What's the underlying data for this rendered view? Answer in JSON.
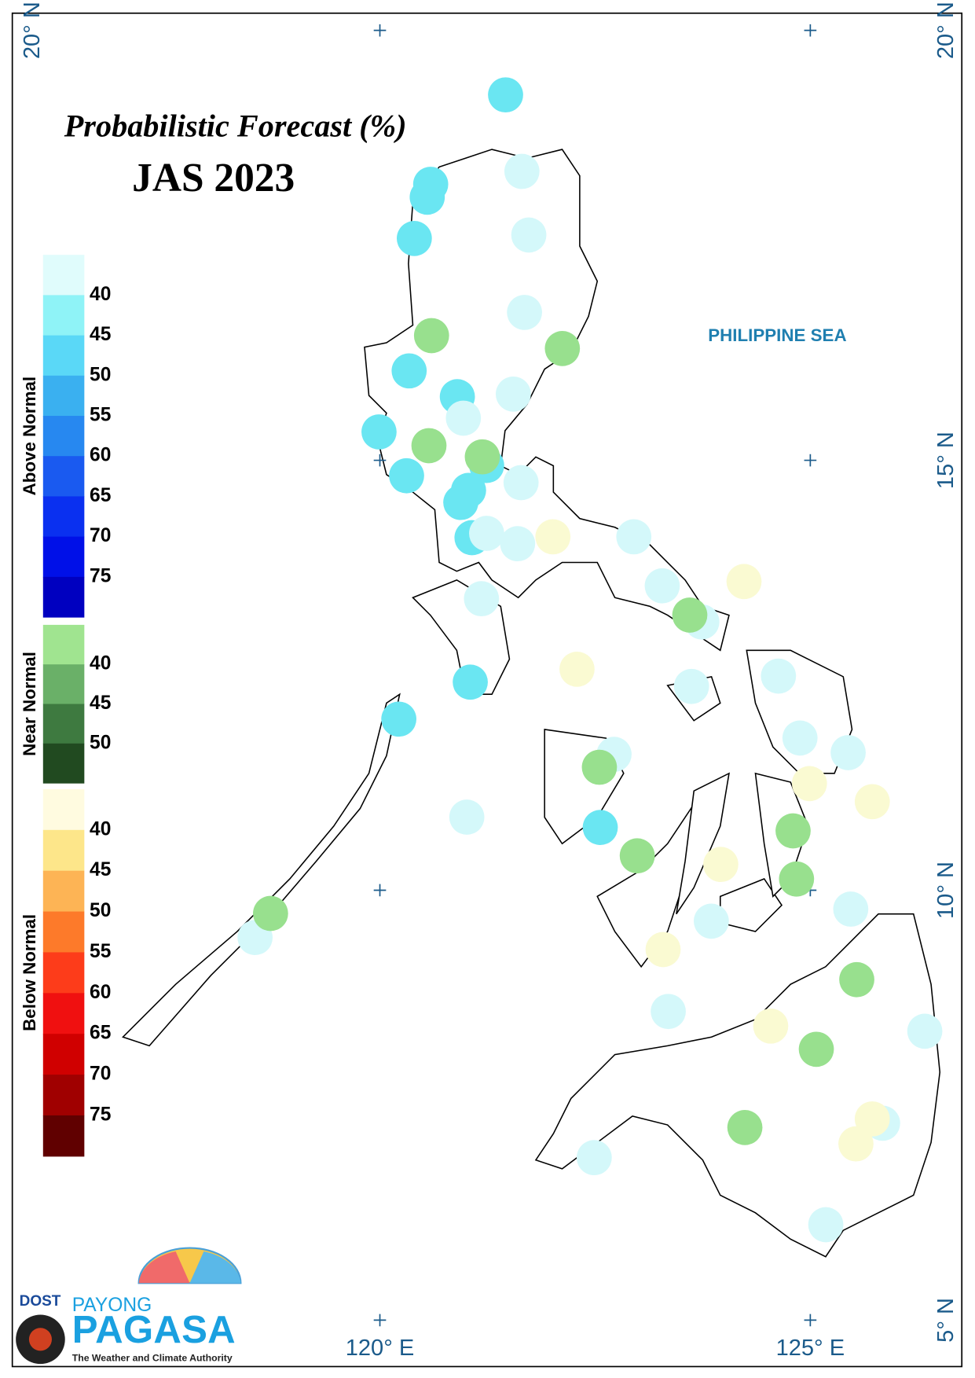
{
  "map": {
    "title": "Probabilistic Forecast (%)",
    "subtitle": "JAS 2023",
    "sea_label": "PHILIPPINE SEA",
    "lon_extent": [
      115.73,
      126.76
    ],
    "lat_extent": [
      4.46,
      20.2
    ],
    "lon_ticks": [
      {
        "value": 120,
        "label": "120° E"
      },
      {
        "value": 125,
        "label": "125° E"
      }
    ],
    "lat_ticks": [
      {
        "value": 20,
        "label": "20° N"
      },
      {
        "value": 15,
        "label": "15° N"
      },
      {
        "value": 10,
        "label": "10° N"
      },
      {
        "value": 5,
        "label": "5° N"
      }
    ],
    "legend": [
      {
        "name": "Above Normal",
        "colors": [
          "#e0fcfc",
          "#8ff3f7",
          "#5ad8f7",
          "#3ab0f0",
          "#2788f0",
          "#1a5af0",
          "#0a30f0",
          "#0010e8",
          "#0000c0"
        ],
        "labels": [
          40,
          45,
          50,
          55,
          60,
          65,
          70,
          75
        ]
      },
      {
        "name": "Near Normal",
        "colors": [
          "#a0e490",
          "#6ab068",
          "#3e7a40",
          "#214a20"
        ],
        "labels": [
          40,
          45,
          50
        ]
      },
      {
        "name": "Below Normal",
        "colors": [
          "#fffbe0",
          "#fde68a",
          "#fdb455",
          "#fd7a2a",
          "#fd3c1a",
          "#f01010",
          "#d00000",
          "#a00000",
          "#600000"
        ],
        "labels": [
          40,
          45,
          50,
          55,
          60,
          65,
          70,
          75
        ]
      }
    ],
    "stations": [
      {
        "lon": 121.46,
        "lat": 19.25,
        "color": "#6ae6f2"
      },
      {
        "lon": 121.65,
        "lat": 18.36,
        "color": "#d4f8fa"
      },
      {
        "lon": 120.59,
        "lat": 18.21,
        "color": "#6ae6f2"
      },
      {
        "lon": 120.55,
        "lat": 18.06,
        "color": "#6ae6f2"
      },
      {
        "lon": 120.4,
        "lat": 17.58,
        "color": "#6ae6f2"
      },
      {
        "lon": 121.73,
        "lat": 17.62,
        "color": "#d4f8fa"
      },
      {
        "lon": 121.68,
        "lat": 16.72,
        "color": "#d4f8fa"
      },
      {
        "lon": 120.6,
        "lat": 16.45,
        "color": "#98e08e"
      },
      {
        "lon": 122.12,
        "lat": 16.3,
        "color": "#98e08e"
      },
      {
        "lon": 120.34,
        "lat": 16.04,
        "color": "#6ae6f2"
      },
      {
        "lon": 120.9,
        "lat": 15.74,
        "color": "#6ae6f2"
      },
      {
        "lon": 121.55,
        "lat": 15.77,
        "color": "#d4f8fa"
      },
      {
        "lon": 120.97,
        "lat": 15.49,
        "color": "#d4f8fa"
      },
      {
        "lon": 119.99,
        "lat": 15.33,
        "color": "#6ae6f2"
      },
      {
        "lon": 120.57,
        "lat": 15.17,
        "color": "#98e08e"
      },
      {
        "lon": 121.24,
        "lat": 14.94,
        "color": "#6ae6f2"
      },
      {
        "lon": 121.19,
        "lat": 15.04,
        "color": "#98e08e"
      },
      {
        "lon": 120.31,
        "lat": 14.82,
        "color": "#6ae6f2"
      },
      {
        "lon": 121.64,
        "lat": 14.74,
        "color": "#d4f8fa"
      },
      {
        "lon": 121.03,
        "lat": 14.65,
        "color": "#6ae6f2"
      },
      {
        "lon": 120.94,
        "lat": 14.51,
        "color": "#6ae6f2"
      },
      {
        "lon": 121.07,
        "lat": 14.1,
        "color": "#6ae6f2"
      },
      {
        "lon": 121.24,
        "lat": 14.15,
        "color": "#d4f8fa"
      },
      {
        "lon": 121.6,
        "lat": 14.03,
        "color": "#d4f8fa"
      },
      {
        "lon": 122.01,
        "lat": 14.11,
        "color": "#fafad2"
      },
      {
        "lon": 122.95,
        "lat": 14.11,
        "color": "#d4f8fa"
      },
      {
        "lon": 123.28,
        "lat": 13.54,
        "color": "#d4f8fa"
      },
      {
        "lon": 124.23,
        "lat": 13.59,
        "color": "#fafad2"
      },
      {
        "lon": 121.18,
        "lat": 13.39,
        "color": "#d4f8fa"
      },
      {
        "lon": 123.74,
        "lat": 13.12,
        "color": "#d4f8fa"
      },
      {
        "lon": 123.6,
        "lat": 13.2,
        "color": "#98e08e"
      },
      {
        "lon": 122.29,
        "lat": 12.57,
        "color": "#fafad2"
      },
      {
        "lon": 121.05,
        "lat": 12.42,
        "color": "#6ae6f2"
      },
      {
        "lon": 123.62,
        "lat": 12.37,
        "color": "#d4f8fa"
      },
      {
        "lon": 124.63,
        "lat": 12.49,
        "color": "#d4f8fa"
      },
      {
        "lon": 120.22,
        "lat": 11.99,
        "color": "#6ae6f2"
      },
      {
        "lon": 124.88,
        "lat": 11.77,
        "color": "#d4f8fa"
      },
      {
        "lon": 125.44,
        "lat": 11.6,
        "color": "#d4f8fa"
      },
      {
        "lon": 122.72,
        "lat": 11.58,
        "color": "#d4f8fa"
      },
      {
        "lon": 122.55,
        "lat": 11.43,
        "color": "#98e08e"
      },
      {
        "lon": 124.99,
        "lat": 11.24,
        "color": "#fafad2"
      },
      {
        "lon": 125.72,
        "lat": 11.03,
        "color": "#fafad2"
      },
      {
        "lon": 121.01,
        "lat": 10.85,
        "color": "#d4f8fa"
      },
      {
        "lon": 122.56,
        "lat": 10.73,
        "color": "#6ae6f2"
      },
      {
        "lon": 124.8,
        "lat": 10.69,
        "color": "#98e08e"
      },
      {
        "lon": 122.99,
        "lat": 10.4,
        "color": "#98e08e"
      },
      {
        "lon": 123.96,
        "lat": 10.3,
        "color": "#fafad2"
      },
      {
        "lon": 124.84,
        "lat": 10.13,
        "color": "#98e08e"
      },
      {
        "lon": 125.47,
        "lat": 9.78,
        "color": "#d4f8fa"
      },
      {
        "lon": 123.85,
        "lat": 9.64,
        "color": "#d4f8fa"
      },
      {
        "lon": 118.55,
        "lat": 9.45,
        "color": "#d4f8fa"
      },
      {
        "lon": 118.73,
        "lat": 9.73,
        "color": "#98e08e"
      },
      {
        "lon": 123.29,
        "lat": 9.31,
        "color": "#fafad2"
      },
      {
        "lon": 125.54,
        "lat": 8.96,
        "color": "#98e08e"
      },
      {
        "lon": 123.35,
        "lat": 8.59,
        "color": "#d4f8fa"
      },
      {
        "lon": 124.54,
        "lat": 8.42,
        "color": "#fafad2"
      },
      {
        "lon": 126.33,
        "lat": 8.36,
        "color": "#d4f8fa"
      },
      {
        "lon": 125.07,
        "lat": 8.15,
        "color": "#98e08e"
      },
      {
        "lon": 124.24,
        "lat": 7.24,
        "color": "#98e08e"
      },
      {
        "lon": 125.84,
        "lat": 7.29,
        "color": "#d4f8fa"
      },
      {
        "lon": 125.72,
        "lat": 7.34,
        "color": "#fafad2"
      },
      {
        "lon": 125.53,
        "lat": 7.05,
        "color": "#fafad2"
      },
      {
        "lon": 122.49,
        "lat": 6.89,
        "color": "#d4f8fa"
      },
      {
        "lon": 125.18,
        "lat": 6.11,
        "color": "#d4f8fa"
      }
    ]
  },
  "logo": {
    "agency": "DOST",
    "brand_top": "PAYONG",
    "brand": "PAGASA",
    "tagline": "The Weather and Climate Authority"
  }
}
